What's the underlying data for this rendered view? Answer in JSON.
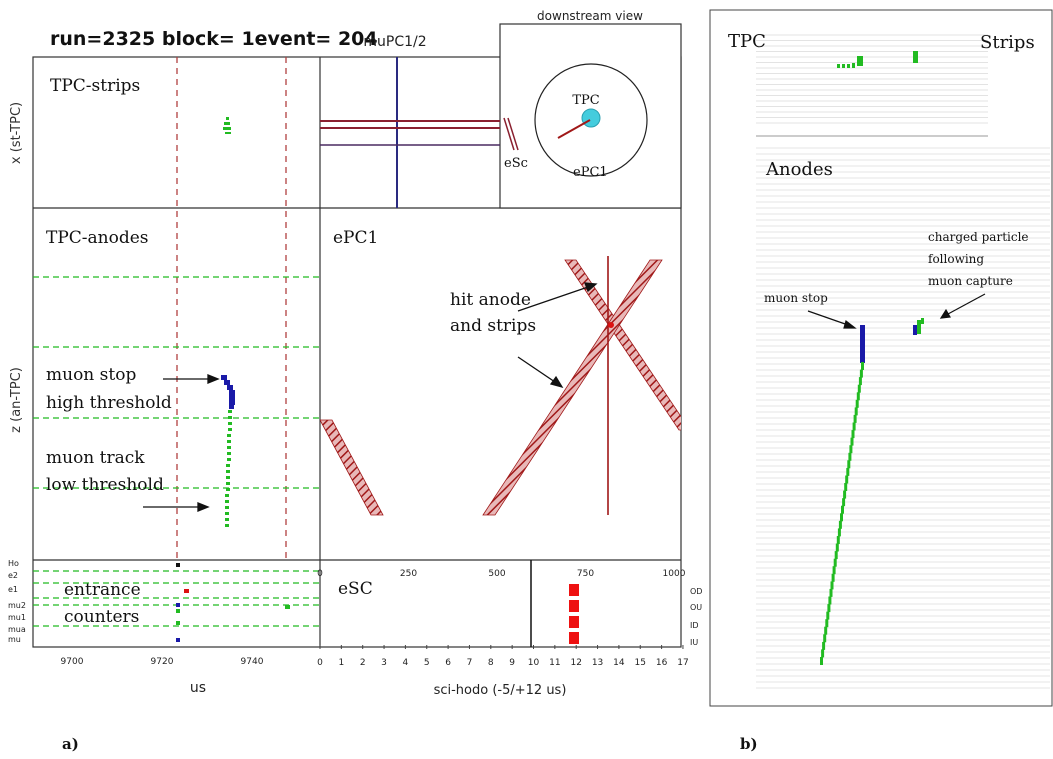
{
  "panel_a": {
    "header": "run=2325 block= 1event= 204",
    "tpc_strips": {
      "label": "TPC-strips",
      "y_axis": "x (st-TPC)"
    },
    "mupc_label": "muPC1/2",
    "downstream": {
      "title": "downstream view",
      "tpc_label": "TPC",
      "esc_label": "eSc",
      "epc_label": "ePC1"
    },
    "tpc_anodes": {
      "label": "TPC-anodes",
      "y_axis": "z (an-TPC)",
      "ann_stop_1": "muon stop",
      "ann_stop_2": "high threshold",
      "ann_track_1": "muon track",
      "ann_track_2": "low threshold"
    },
    "epc1": {
      "label": "ePC1",
      "ann_1": "hit anode",
      "ann_2": "and strips",
      "top_ticks": [
        "0",
        "250",
        "500",
        "750",
        "1000"
      ]
    },
    "entrance": {
      "label_1": "entrance",
      "label_2": "counters",
      "channel_labels": [
        "Ho",
        "e2",
        "e1",
        "mu2",
        "mu1",
        "mua",
        "mu"
      ]
    },
    "esc": {
      "label": "eSC",
      "right_labels": [
        "OD",
        "OU",
        "ID",
        "IU"
      ],
      "x_ticks": [
        "0",
        "1",
        "2",
        "3",
        "4",
        "5",
        "6",
        "7",
        "8",
        "9",
        "10",
        "11",
        "12",
        "13",
        "14",
        "15",
        "16",
        "17"
      ],
      "x_axis": "sci-hodo (-5/+12 us)"
    },
    "us_ticks": [
      "9700",
      "9720",
      "9740"
    ],
    "us_axis": "us",
    "panel_letter": "a)"
  },
  "panel_b": {
    "tpc_label": "TPC",
    "strips_label": "Strips",
    "anodes_label": "Anodes",
    "muon_stop": "muon stop",
    "charged_1": "charged particle",
    "charged_2": "following",
    "charged_3": "muon capture",
    "panel_letter": "b)"
  },
  "colors": {
    "green": "#22bb22",
    "blue": "#1a1aa8",
    "red": "#dd1111",
    "dark_red": "#a01818",
    "cyan": "#44ccdd",
    "grid": "#ffffff"
  }
}
